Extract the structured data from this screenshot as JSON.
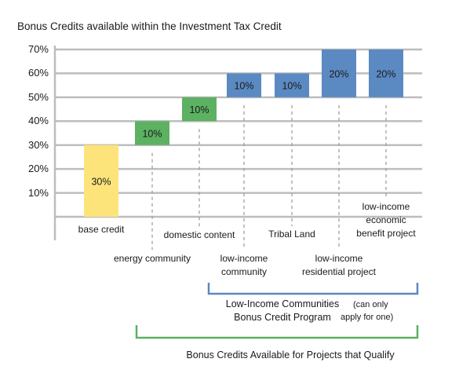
{
  "title": "Bonus Credits available within the Investment Tax Credit",
  "chart_data": {
    "type": "bar",
    "subtype": "waterfall",
    "title": "Bonus Credits available within the Investment Tax Credit",
    "y_ticks": [
      "70%",
      "60%",
      "50%",
      "40%",
      "30%",
      "20%",
      "10%"
    ],
    "ylim": [
      0,
      70
    ],
    "grid": true,
    "categories": [
      "base credit",
      "energy community",
      "domestic content",
      "low-income community",
      "Tribal Land",
      "low-income residential project",
      "low-income economic benefit project"
    ],
    "series": [
      {
        "start": 0,
        "value": 30,
        "label": "30%",
        "color": "#fde47a"
      },
      {
        "start": 30,
        "value": 10,
        "label": "10%",
        "color": "#5cb162"
      },
      {
        "start": 40,
        "value": 10,
        "label": "10%",
        "color": "#5cb162"
      },
      {
        "start": 50,
        "value": 10,
        "label": "10%",
        "color": "#5b89c2"
      },
      {
        "start": 50,
        "value": 10,
        "label": "10%",
        "color": "#5b89c2"
      },
      {
        "start": 50,
        "value": 20,
        "label": "20%",
        "color": "#5b89c2"
      },
      {
        "start": 50,
        "value": 20,
        "label": "20%",
        "color": "#5b89c2"
      }
    ]
  },
  "category_labels": {
    "base_credit": "base credit",
    "energy_community": "energy community",
    "domestic_content": "domestic content",
    "low_income_community": [
      "low-income",
      "community"
    ],
    "tribal_land": "Tribal Land",
    "low_income_residential": [
      "low-income",
      "residential project"
    ],
    "low_income_economic": [
      "low-income",
      "economic",
      "benefit project"
    ]
  },
  "brackets": {
    "low_income_program": {
      "line1": "Low-Income Communities",
      "line2": "Bonus Credit Program",
      "note1": "(can only",
      "note2": "apply for one)",
      "color": "#5b89c2"
    },
    "qualify": {
      "label": "Bonus Credits Available for Projects that Qualify",
      "color": "#5cb162"
    }
  }
}
